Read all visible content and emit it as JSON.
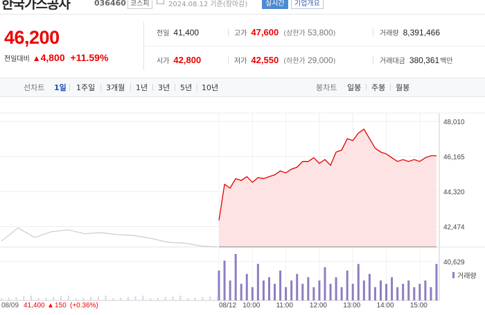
{
  "header": {
    "stock_name": "한국가스공사",
    "stock_code": "036460",
    "market_badge": "코스피",
    "date_text": "2024.08.12 기준(장마감)",
    "realtime_label": "실시간",
    "corp_info_label": "기업개요"
  },
  "price": {
    "current": "46,200",
    "change_label": "전일대비",
    "change_amount": "4,800",
    "change_pct": "+11.59%"
  },
  "stats": {
    "prev_close_label": "전일",
    "prev_close": "41,400",
    "high_label": "고가",
    "high": "47,600",
    "upper_limit_label": "상한가",
    "upper_limit": "53,800",
    "volume_label": "거래량",
    "volume": "8,391,466",
    "open_label": "시가",
    "open": "42,800",
    "low_label": "저가",
    "low": "42,550",
    "lower_limit_label": "하한가",
    "lower_limit": "29,000",
    "trade_value_label": "거래대금",
    "trade_value": "380,361",
    "trade_value_unit": "백만"
  },
  "tabs": {
    "line_label": "선차트",
    "periods": [
      "1일",
      "1주일",
      "3개월",
      "1년",
      "3년",
      "5년",
      "10년"
    ],
    "active_period": "1일",
    "candle_label": "봉차트",
    "candles": [
      "일봉",
      "주봉",
      "월봉"
    ]
  },
  "colors": {
    "up": "#e00000",
    "accent": "#1f4db8",
    "volume": "#8e7cc3",
    "fill": "#fde3e3",
    "prev_line": "#cccccc"
  },
  "chart_data": {
    "type": "line",
    "y_ticks": [
      "48,010",
      "46,165",
      "44,320",
      "42,474",
      "40,629"
    ],
    "ylim": [
      40629,
      48010
    ],
    "x_ticks": [
      "08/12",
      "10:00",
      "11:00",
      "12:00",
      "13:00",
      "14:00",
      "15:00"
    ],
    "prev_day_label": "08/09",
    "prev_day_close": "41,400",
    "prev_day_change": "150",
    "prev_day_change_pct": "(+0.36%)",
    "volume_legend": "거래량",
    "series": [
      {
        "x": [
          "09:00",
          "09:10",
          "09:20",
          "09:30",
          "09:40",
          "09:50",
          "10:00",
          "10:10",
          "10:20",
          "10:30",
          "10:40",
          "10:50",
          "11:00",
          "11:10",
          "11:20",
          "11:30",
          "11:40",
          "11:50",
          "12:00",
          "12:10",
          "12:20",
          "12:30",
          "12:40",
          "12:50",
          "13:00",
          "13:10",
          "13:20",
          "13:30",
          "13:40",
          "13:50",
          "14:00",
          "14:10",
          "14:20",
          "14:30",
          "14:40",
          "14:50",
          "15:00",
          "15:10",
          "15:20",
          "15:30"
        ],
        "values": [
          42800,
          44700,
          44500,
          45000,
          44900,
          45100,
          44800,
          45050,
          45000,
          45100,
          45200,
          45400,
          45300,
          45500,
          45600,
          45900,
          45900,
          46100,
          45800,
          46000,
          45700,
          46400,
          46500,
          47100,
          47000,
          47400,
          47600,
          47100,
          46600,
          46400,
          46300,
          46100,
          45900,
          46000,
          45900,
          46000,
          45900,
          46100,
          46200,
          46200
        ]
      }
    ],
    "prev_session": {
      "x": [
        "09:00",
        "09:30",
        "10:00",
        "10:30",
        "11:00",
        "11:30",
        "12:00",
        "12:30",
        "13:00",
        "13:30",
        "14:00",
        "14:30",
        "15:00",
        "15:30"
      ],
      "values": [
        41700,
        42400,
        41900,
        42200,
        42300,
        42100,
        42150,
        42050,
        42000,
        41850,
        41650,
        41600,
        41450,
        41400
      ]
    },
    "volume_series": [
      9,
      12,
      6,
      14,
      5,
      8,
      4,
      11,
      6,
      7,
      5,
      9,
      4,
      6,
      8,
      5,
      7,
      4,
      6,
      10,
      5,
      7,
      4,
      9,
      5,
      11,
      6,
      8,
      4,
      6,
      5,
      7,
      4,
      5,
      6,
      4,
      5,
      6,
      4,
      11
    ]
  }
}
